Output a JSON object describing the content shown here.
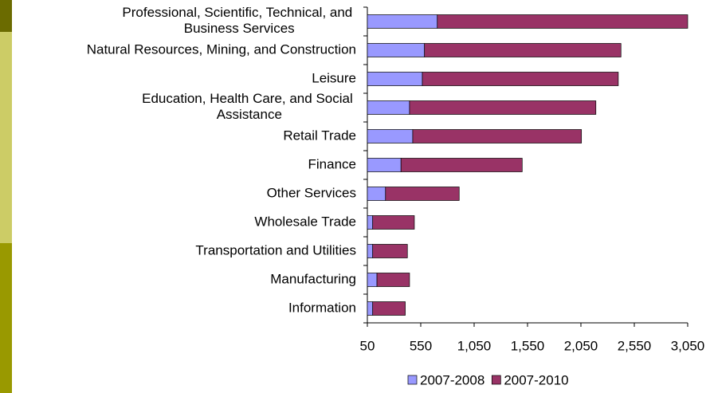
{
  "chart_data": {
    "type": "stacked_bar_horizontal",
    "categories": [
      "Professional, Scientific, Technical, and Business Services",
      "Natural Resources, Mining, and Construction",
      "Leisure",
      "Education, Health Care, and Social Assistance",
      "Retail Trade",
      "Finance",
      "Other Services",
      "Wholesale Trade",
      "Transportation and Utilities",
      "Manufacturing",
      "Information"
    ],
    "series": [
      {
        "name": "2007-2008",
        "color": "#9999ff",
        "values": [
          705,
          585,
          565,
          445,
          475,
          365,
          220,
          100,
          100,
          140,
          100
        ]
      },
      {
        "name": "2007-2010",
        "color": "#993366",
        "values": [
          2345,
          1840,
          1835,
          1745,
          1580,
          1135,
          690,
          390,
          325,
          305,
          305
        ]
      }
    ],
    "xlim": [
      50,
      3050
    ],
    "xticks": [
      50,
      550,
      {
        "value": 1050,
        "label": "1,050"
      },
      {
        "value": 1550,
        "label": "1,550"
      },
      {
        "value": 2050,
        "label": "2,050"
      },
      {
        "value": 2550,
        "label": "2,550"
      },
      {
        "value": 3050,
        "label": "3,050"
      }
    ],
    "legend": "bottom"
  }
}
